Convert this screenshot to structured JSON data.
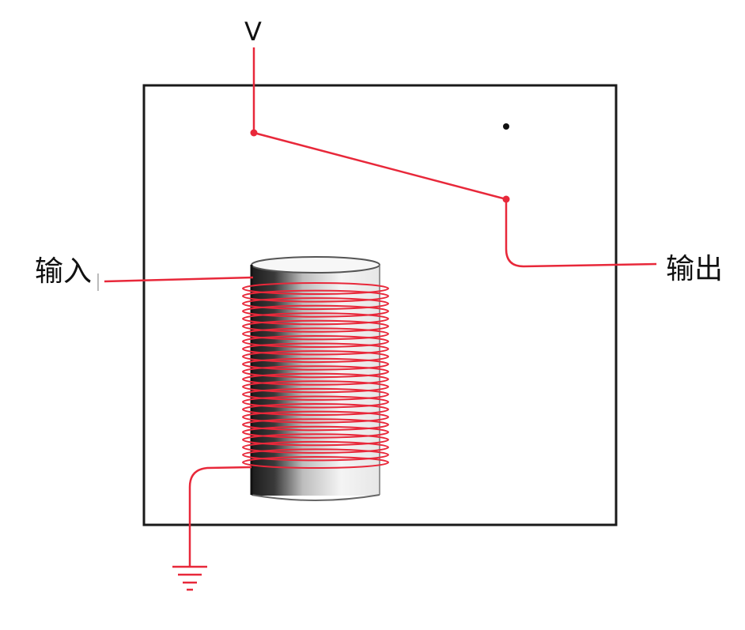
{
  "labels": {
    "voltage": "V",
    "input": "输入",
    "output": "输出"
  },
  "colors": {
    "wire": "#e8283a",
    "frame": "#1a1a1a",
    "core": "#2a2a2a"
  },
  "coil": {
    "turns": 24
  }
}
